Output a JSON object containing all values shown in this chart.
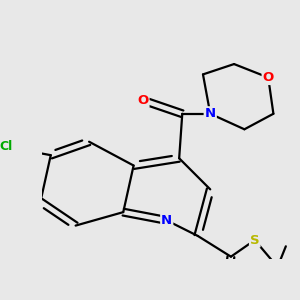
{
  "bg_color": "#e8e8e8",
  "bond_color": "#000000",
  "bond_width": 1.6,
  "dbo": 0.055,
  "atom_colors": {
    "N": "#0000ff",
    "O": "#ff0000",
    "S": "#b8b800",
    "Cl": "#00aa00",
    "C": "#000000"
  },
  "font_size": 9.5
}
